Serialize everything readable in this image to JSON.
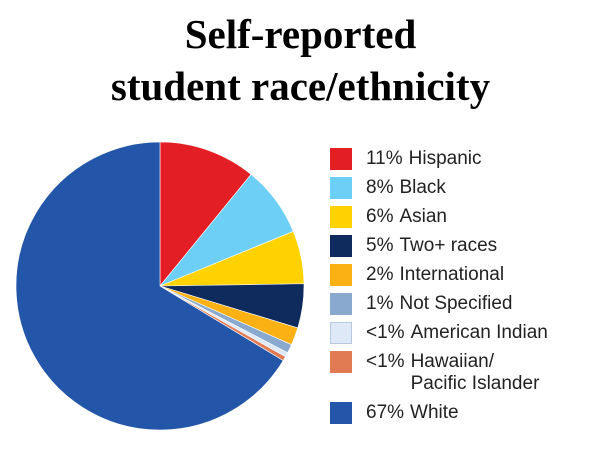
{
  "chart_data": {
    "type": "pie",
    "title": "Self-reported\nstudent race/ethnicity",
    "categories": [
      "Hispanic",
      "Black",
      "Asian",
      "Two+ races",
      "International",
      "Not Specified",
      "American Indian",
      "Hawaiian/\nPacific Islander",
      "White"
    ],
    "values": [
      11,
      8,
      6,
      5,
      2,
      1,
      0.5,
      0.5,
      67
    ],
    "value_labels": [
      "11%",
      "8%",
      "6%",
      "5%",
      "2%",
      "1%",
      "<1%",
      "<1%",
      "67%"
    ],
    "colors": [
      "#e31e24",
      "#6dcff6",
      "#ffd200",
      "#0f2a5c",
      "#fbb114",
      "#8aa9cf",
      "#dde9f7",
      "#e07b53",
      "#2356a8"
    ]
  }
}
